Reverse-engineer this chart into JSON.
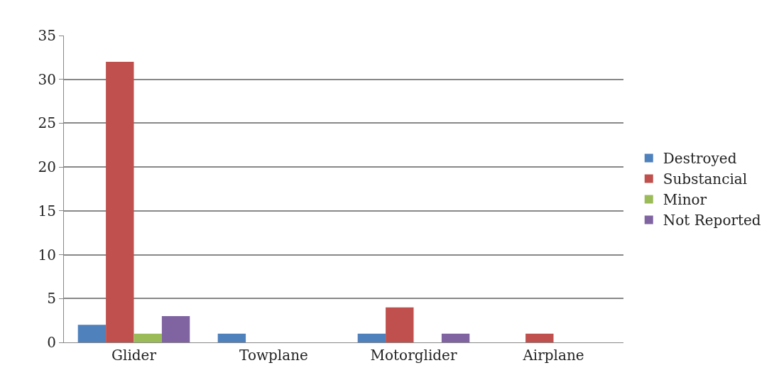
{
  "chart_data": {
    "type": "bar",
    "categories": [
      "Glider",
      "Towplane",
      "Motorglider",
      "Airplane"
    ],
    "series": [
      {
        "name": "Destroyed",
        "color": "#4f81bd",
        "values": [
          2,
          1,
          1,
          0
        ]
      },
      {
        "name": "Substancial",
        "color": "#c0504d",
        "values": [
          32,
          0,
          4,
          1
        ]
      },
      {
        "name": "Minor",
        "color": "#9bbb59",
        "values": [
          1,
          0,
          0,
          0
        ]
      },
      {
        "name": "Not Reported",
        "color": "#8064a2",
        "values": [
          3,
          0,
          1,
          0
        ]
      }
    ],
    "ylim": [
      0,
      35
    ],
    "yticks": [
      0,
      5,
      10,
      15,
      20,
      25,
      30,
      35
    ],
    "grid": "y",
    "legend": "right"
  }
}
